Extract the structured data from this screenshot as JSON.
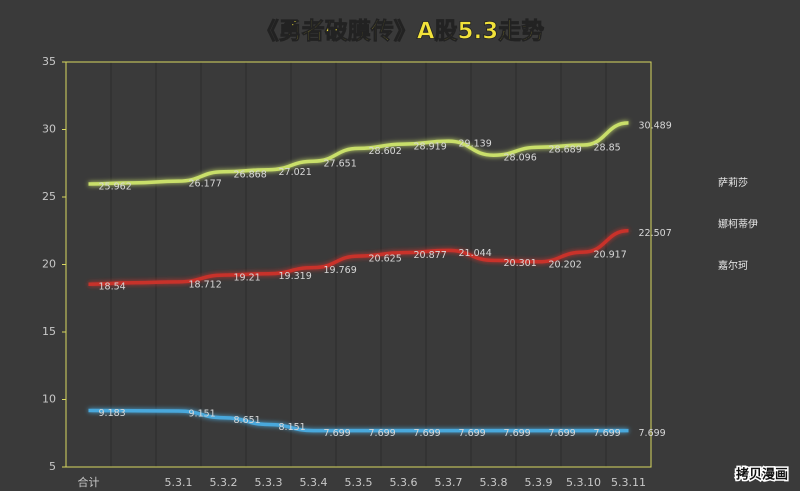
{
  "chart_data": {
    "type": "line",
    "title": "《勇者破膜传》A股5.3走势",
    "watermark": "拷贝漫画",
    "categories": [
      "合计",
      null,
      "5.3.1",
      "5.3.2",
      "5.3.3",
      "5.3.4",
      "5.3.5",
      "5.3.6",
      "5.3.7",
      "5.3.8",
      "5.3.9",
      "5.3.10",
      "5.3.11"
    ],
    "series": [
      {
        "name": "萨莉莎",
        "color": "#c8302c",
        "values": [
          18.54,
          18.65,
          18.712,
          19.21,
          19.319,
          19.769,
          20.625,
          20.877,
          21.044,
          20.301,
          20.202,
          20.917,
          22.507
        ]
      },
      {
        "name": "娜柯蒂伊",
        "color": "#c9df6a",
        "values": [
          25.962,
          26.05,
          26.177,
          26.868,
          27.021,
          27.651,
          28.602,
          28.919,
          29.139,
          28.096,
          28.689,
          28.85,
          30.489
        ]
      },
      {
        "name": "嘉尔珂",
        "color": "#4aa8dc",
        "values": [
          9.183,
          9.17,
          9.151,
          8.651,
          8.151,
          7.699,
          7.699,
          7.699,
          7.699,
          7.699,
          7.699,
          7.699,
          7.699
        ]
      }
    ],
    "ylim": [
      5,
      35
    ],
    "yticks": [
      5,
      10,
      15,
      20,
      25,
      30,
      35
    ],
    "grid": true,
    "legend": "right"
  }
}
